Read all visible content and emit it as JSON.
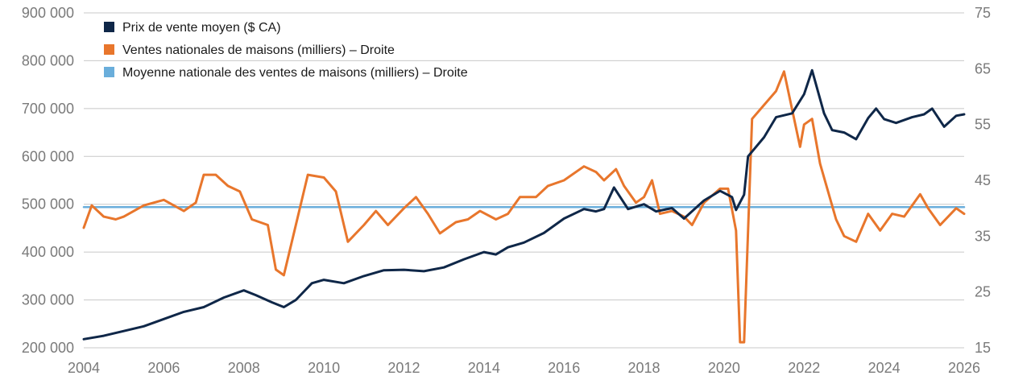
{
  "chart_data": {
    "type": "line",
    "title": "",
    "legend_position": "top-left",
    "grid": "horizontal",
    "x_range": [
      2004,
      2026
    ],
    "x_ticks": [
      2004,
      2006,
      2008,
      2010,
      2012,
      2014,
      2016,
      2018,
      2020,
      2022,
      2024,
      2026
    ],
    "x_tick_labels": [
      "2004",
      "2006",
      "2008",
      "2010",
      "2012",
      "2014",
      "2016",
      "2018",
      "2020",
      "2022",
      "2024",
      "2026"
    ],
    "y_left": {
      "range": [
        200000,
        900000
      ],
      "ticks": [
        200000,
        300000,
        400000,
        500000,
        600000,
        700000,
        800000,
        900000
      ],
      "tick_labels": [
        "200 000",
        "300 000",
        "400 000",
        "500 000",
        "600 000",
        "700 000",
        "800 000",
        "900 000"
      ]
    },
    "y_right": {
      "range": [
        15,
        75
      ],
      "ticks": [
        15,
        25,
        35,
        45,
        55,
        65,
        75
      ],
      "tick_labels": [
        "15",
        "25",
        "35",
        "45",
        "55",
        "65",
        "75"
      ]
    },
    "series": [
      {
        "name": "Prix de vente moyen ($ CA)",
        "axis": "left",
        "color": "#0f2748",
        "points": [
          [
            2004.0,
            218000
          ],
          [
            2004.5,
            225000
          ],
          [
            2005.0,
            235000
          ],
          [
            2005.5,
            245000
          ],
          [
            2006.0,
            260000
          ],
          [
            2006.5,
            275000
          ],
          [
            2007.0,
            285000
          ],
          [
            2007.5,
            305000
          ],
          [
            2008.0,
            320000
          ],
          [
            2008.3,
            310000
          ],
          [
            2008.7,
            295000
          ],
          [
            2009.0,
            285000
          ],
          [
            2009.3,
            300000
          ],
          [
            2009.7,
            335000
          ],
          [
            2010.0,
            342000
          ],
          [
            2010.5,
            335000
          ],
          [
            2011.0,
            350000
          ],
          [
            2011.5,
            362000
          ],
          [
            2012.0,
            363000
          ],
          [
            2012.5,
            360000
          ],
          [
            2013.0,
            368000
          ],
          [
            2013.5,
            385000
          ],
          [
            2014.0,
            400000
          ],
          [
            2014.3,
            395000
          ],
          [
            2014.6,
            410000
          ],
          [
            2015.0,
            420000
          ],
          [
            2015.5,
            440000
          ],
          [
            2016.0,
            470000
          ],
          [
            2016.5,
            490000
          ],
          [
            2016.8,
            485000
          ],
          [
            2017.0,
            490000
          ],
          [
            2017.25,
            535000
          ],
          [
            2017.6,
            490000
          ],
          [
            2018.0,
            500000
          ],
          [
            2018.3,
            485000
          ],
          [
            2018.7,
            492000
          ],
          [
            2019.0,
            470000
          ],
          [
            2019.5,
            508000
          ],
          [
            2019.9,
            528000
          ],
          [
            2020.2,
            515000
          ],
          [
            2020.3,
            488000
          ],
          [
            2020.5,
            520000
          ],
          [
            2020.6,
            600000
          ],
          [
            2021.0,
            640000
          ],
          [
            2021.3,
            682000
          ],
          [
            2021.7,
            690000
          ],
          [
            2022.0,
            730000
          ],
          [
            2022.2,
            780000
          ],
          [
            2022.5,
            690000
          ],
          [
            2022.7,
            655000
          ],
          [
            2023.0,
            650000
          ],
          [
            2023.3,
            636000
          ],
          [
            2023.6,
            680000
          ],
          [
            2023.8,
            700000
          ],
          [
            2024.0,
            678000
          ],
          [
            2024.3,
            670000
          ],
          [
            2024.7,
            682000
          ],
          [
            2025.0,
            688000
          ],
          [
            2025.2,
            700000
          ],
          [
            2025.5,
            662000
          ],
          [
            2025.8,
            685000
          ],
          [
            2026.0,
            688000
          ]
        ]
      },
      {
        "name": "Ventes nationales de maisons (milliers) – Droite",
        "axis": "right",
        "color": "#e8762c",
        "points": [
          [
            2004.0,
            36.5
          ],
          [
            2004.2,
            40.5
          ],
          [
            2004.5,
            38.5
          ],
          [
            2004.8,
            38
          ],
          [
            2005.0,
            38.5
          ],
          [
            2005.5,
            40.5
          ],
          [
            2006.0,
            41.5
          ],
          [
            2006.5,
            39.5
          ],
          [
            2006.8,
            41
          ],
          [
            2007.0,
            46
          ],
          [
            2007.3,
            46
          ],
          [
            2007.6,
            44
          ],
          [
            2007.9,
            43
          ],
          [
            2008.2,
            38
          ],
          [
            2008.6,
            37
          ],
          [
            2008.8,
            29
          ],
          [
            2009.0,
            28
          ],
          [
            2009.3,
            37
          ],
          [
            2009.6,
            46
          ],
          [
            2010.0,
            45.5
          ],
          [
            2010.3,
            43
          ],
          [
            2010.6,
            34
          ],
          [
            2011.0,
            37
          ],
          [
            2011.3,
            39.5
          ],
          [
            2011.6,
            37
          ],
          [
            2012.0,
            40
          ],
          [
            2012.3,
            42
          ],
          [
            2012.6,
            39
          ],
          [
            2012.9,
            35.5
          ],
          [
            2013.3,
            37.5
          ],
          [
            2013.6,
            38
          ],
          [
            2013.9,
            39.5
          ],
          [
            2014.3,
            38
          ],
          [
            2014.6,
            39
          ],
          [
            2014.9,
            42
          ],
          [
            2015.3,
            42
          ],
          [
            2015.6,
            44
          ],
          [
            2016.0,
            45
          ],
          [
            2016.5,
            47.5
          ],
          [
            2016.8,
            46.5
          ],
          [
            2017.0,
            45
          ],
          [
            2017.3,
            47
          ],
          [
            2017.5,
            44
          ],
          [
            2017.8,
            41
          ],
          [
            2018.0,
            42
          ],
          [
            2018.2,
            45
          ],
          [
            2018.4,
            39
          ],
          [
            2018.7,
            39.5
          ],
          [
            2019.0,
            38.5
          ],
          [
            2019.2,
            37
          ],
          [
            2019.5,
            41
          ],
          [
            2019.9,
            43.5
          ],
          [
            2020.1,
            43.5
          ],
          [
            2020.3,
            36
          ],
          [
            2020.4,
            16
          ],
          [
            2020.5,
            16
          ],
          [
            2020.7,
            56
          ],
          [
            2021.0,
            58.5
          ],
          [
            2021.3,
            61
          ],
          [
            2021.5,
            64.5
          ],
          [
            2021.9,
            51
          ],
          [
            2022.0,
            55
          ],
          [
            2022.2,
            56
          ],
          [
            2022.4,
            48
          ],
          [
            2022.8,
            38
          ],
          [
            2023.0,
            35
          ],
          [
            2023.3,
            34
          ],
          [
            2023.6,
            39
          ],
          [
            2023.9,
            36
          ],
          [
            2024.2,
            39
          ],
          [
            2024.5,
            38.5
          ],
          [
            2024.9,
            42.5
          ],
          [
            2025.1,
            40
          ],
          [
            2025.4,
            37
          ],
          [
            2025.8,
            40
          ],
          [
            2026.0,
            39
          ]
        ]
      },
      {
        "name": "Moyenne nationale des ventes de maisons (milliers) – Droite",
        "axis": "right",
        "color": "#6aaedb",
        "points": [
          [
            2004.0,
            40.2
          ],
          [
            2026.0,
            40.2
          ]
        ]
      }
    ]
  }
}
